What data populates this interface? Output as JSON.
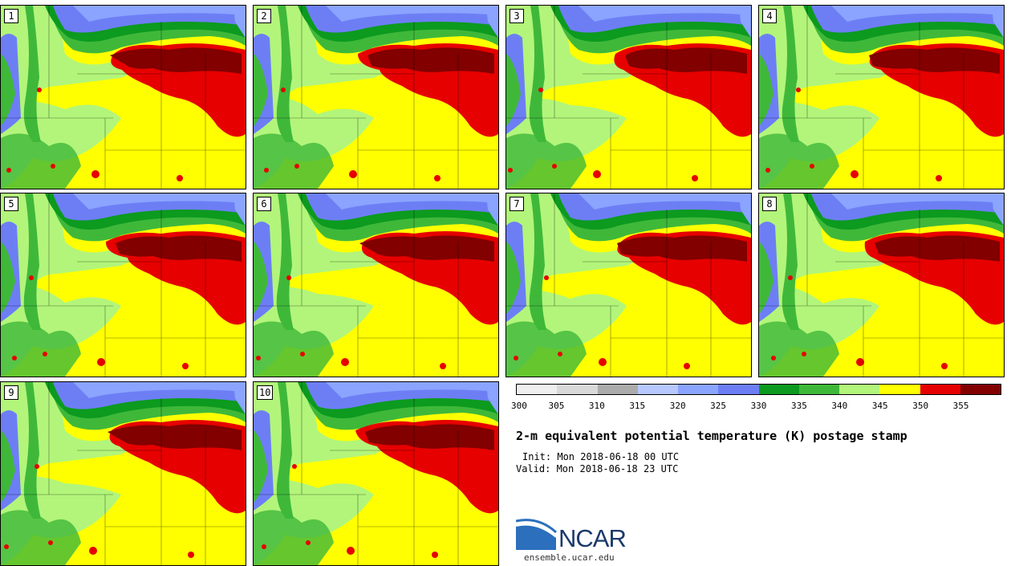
{
  "title": "2-m equivalent potential temperature (K) postage stamp",
  "init": "Init: Mon 2018-06-18 00 UTC",
  "valid": "Valid: Mon 2018-06-18 23 UTC",
  "logo_text": "NCAR",
  "url": "ensemble.ucar.edu",
  "members": [
    "1",
    "2",
    "3",
    "4",
    "5",
    "6",
    "7",
    "8",
    "9",
    "10"
  ],
  "colorbar": {
    "colors": [
      "#efefef",
      "#d9d9d9",
      "#ababab",
      "#b7c8ff",
      "#8aa4ff",
      "#6d7ef5",
      "#0c9a1f",
      "#3fb83a",
      "#b2f57a",
      "#ffff00",
      "#e60000",
      "#820000"
    ],
    "ticks": [
      "300",
      "305",
      "310",
      "315",
      "320",
      "325",
      "330",
      "335",
      "340",
      "345",
      "350",
      "355"
    ]
  }
}
